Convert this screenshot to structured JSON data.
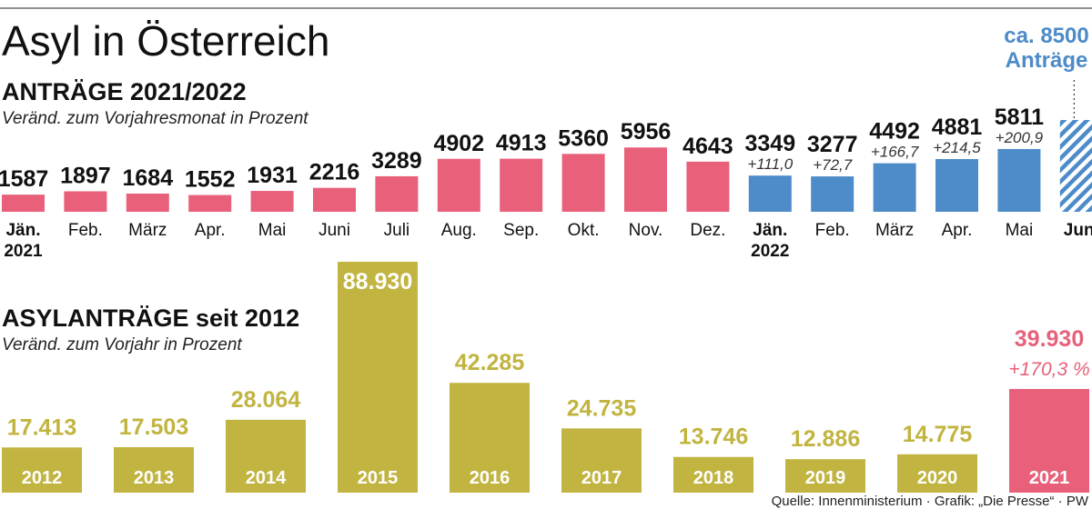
{
  "title": "Asyl in Österreich",
  "source": "Quelle: Innenministerium · Grafik: „Die Presse“ · PW",
  "colors": {
    "pink": "#e8607a",
    "blue": "#4d8bc9",
    "olive": "#c1b440",
    "dark": "#111111",
    "grey": "#333333"
  },
  "chart_data": [
    {
      "type": "bar",
      "title": "ANTRÄGE 2021/2022",
      "subtitle": "Veränd. zum Vorjahresmonat in Prozent",
      "categories": [
        {
          "label": "Jän.",
          "sub": "2021"
        },
        {
          "label": "Feb.",
          "sub": ""
        },
        {
          "label": "März",
          "sub": ""
        },
        {
          "label": "Apr.",
          "sub": ""
        },
        {
          "label": "Mai",
          "sub": ""
        },
        {
          "label": "Juni",
          "sub": ""
        },
        {
          "label": "Juli",
          "sub": ""
        },
        {
          "label": "Aug.",
          "sub": ""
        },
        {
          "label": "Sep.",
          "sub": ""
        },
        {
          "label": "Okt.",
          "sub": ""
        },
        {
          "label": "Nov.",
          "sub": ""
        },
        {
          "label": "Dez.",
          "sub": ""
        },
        {
          "label": "Jän.",
          "sub": "2022"
        },
        {
          "label": "Feb.",
          "sub": ""
        },
        {
          "label": "März",
          "sub": ""
        },
        {
          "label": "Apr.",
          "sub": ""
        },
        {
          "label": "Mai",
          "sub": ""
        },
        {
          "label": "Juni",
          "sub": ""
        }
      ],
      "values": [
        1587,
        1897,
        1684,
        1552,
        1931,
        2216,
        3289,
        4902,
        4913,
        5360,
        5956,
        4643,
        3349,
        3277,
        4492,
        4881,
        5811,
        8500
      ],
      "value_labels": [
        "1587",
        "1897",
        "1684",
        "1552",
        "1931",
        "2216",
        "3289",
        "4902",
        "4913",
        "5360",
        "5956",
        "4643",
        "3349",
        "3277",
        "4492",
        "4881",
        "5811",
        ""
      ],
      "changes": [
        "",
        "",
        "",
        "",
        "",
        "",
        "",
        "",
        "",
        "",
        "",
        "",
        "+111,0",
        "+72,7",
        "+166,7",
        "+214,5",
        "+200,9",
        ""
      ],
      "series_color": [
        "pink",
        "pink",
        "pink",
        "pink",
        "pink",
        "pink",
        "pink",
        "pink",
        "pink",
        "pink",
        "pink",
        "pink",
        "blue",
        "blue",
        "blue",
        "blue",
        "blue",
        "blue"
      ],
      "estimate_index": 17,
      "estimate_label": [
        "ca. 8500",
        "Anträge"
      ],
      "bold_label_indices": [
        0,
        12,
        17
      ]
    },
    {
      "type": "bar",
      "title": "ASYLANTRÄGE seit 2012",
      "subtitle": "Veränd. zum Vorjahr in Prozent",
      "categories": [
        "2012",
        "2013",
        "2014",
        "2015",
        "2016",
        "2017",
        "2018",
        "2019",
        "2020",
        "2021"
      ],
      "values": [
        17413,
        17503,
        28064,
        88930,
        42285,
        24735,
        13746,
        12886,
        14775,
        39930
      ],
      "value_labels": [
        "17.413",
        "17.503",
        "28.064",
        "88.930",
        "42.285",
        "24.735",
        "13.746",
        "12.886",
        "14.775",
        "39.930"
      ],
      "highlight_index": 9,
      "highlight_change": "+170,3 %"
    }
  ]
}
